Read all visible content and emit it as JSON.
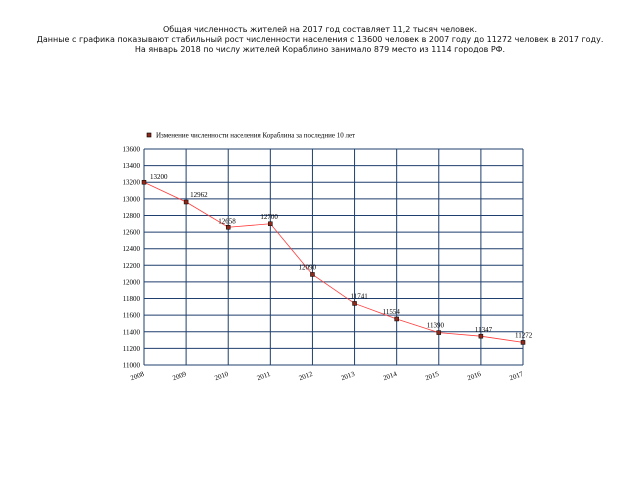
{
  "intro": {
    "line1": "Общая численность жителей на 2017 год составляет 11,2 тысяч человек.",
    "line2": "Данные с графика показывают стабильный рост численности населения с 13600 человек в 2007 году до 11272 человек в 2017 году.",
    "line3": "На январь 2018 по числу жителей Кораблино занимало 879 место из 1114 городов РФ."
  },
  "chart_data": {
    "type": "line",
    "title": "",
    "xlabel": "",
    "ylabel": "",
    "legend": {
      "position": "top-left",
      "label": "Изменение численности населения Кораблина за последние 10 лет"
    },
    "categories": [
      "2008",
      "2009",
      "2010",
      "2011",
      "2012",
      "2013",
      "2014",
      "2015",
      "2016",
      "2017"
    ],
    "series": [
      {
        "name": "Изменение численности населения Кораблина за последние 10 лет",
        "values": [
          13200,
          12962,
          12658,
          12700,
          12090,
          11741,
          11554,
          11390,
          11347,
          11272
        ],
        "color": "#ff3b3b",
        "marker_color": "#8b2a1a"
      }
    ],
    "data_labels": [
      "13200",
      "12962",
      "12658",
      "12700",
      "12090",
      "11741",
      "11554",
      "11390",
      "11347",
      "11272"
    ],
    "ylim": [
      11000,
      13600
    ],
    "yticks": [
      11000,
      11200,
      11400,
      11600,
      11800,
      12000,
      12200,
      12400,
      12600,
      12800,
      13000,
      13200,
      13400,
      13600
    ],
    "grid": true,
    "grid_color": "#1f3f6e"
  }
}
